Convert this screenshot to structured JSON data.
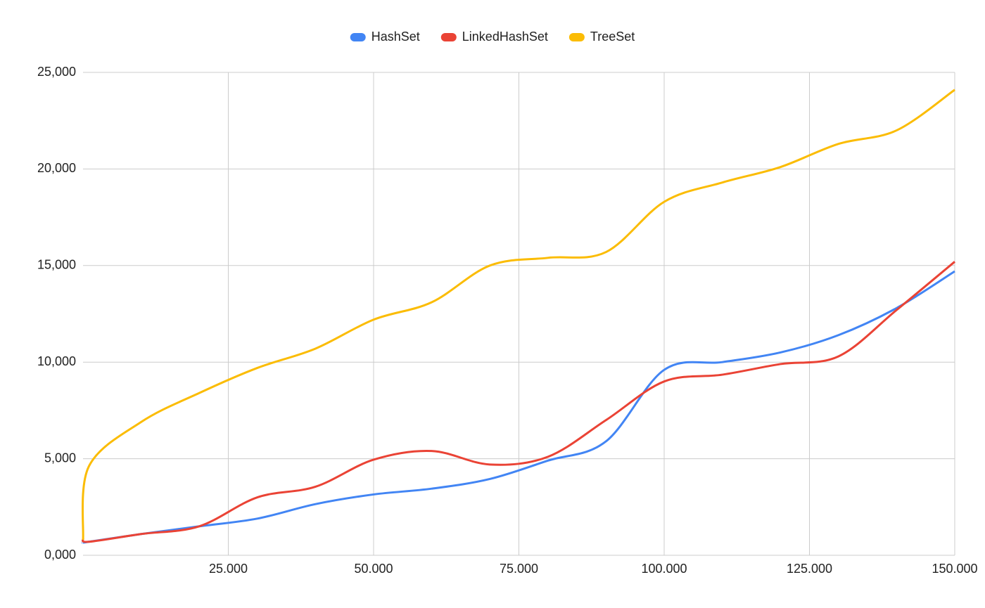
{
  "chart_data": {
    "type": "line",
    "x": [
      0,
      1000,
      10000,
      20000,
      30000,
      40000,
      50000,
      60000,
      70000,
      80000,
      90000,
      100000,
      110000,
      120000,
      130000,
      140000,
      150000
    ],
    "series": [
      {
        "name": "HashSet",
        "color": "#4285f4",
        "values": [
          650,
          700,
          1100,
          1500,
          1900,
          2650,
          3150,
          3450,
          3950,
          4900,
          5900,
          9600,
          10000,
          10500,
          11400,
          12800,
          14700
        ]
      },
      {
        "name": "LinkedHashSet",
        "color": "#ea4335",
        "values": [
          850,
          700,
          1100,
          1500,
          3000,
          3550,
          4950,
          5400,
          4700,
          5100,
          7000,
          9000,
          9350,
          9900,
          10300,
          12700,
          15200
        ]
      },
      {
        "name": "TreeSet",
        "color": "#fbbc04",
        "values": [
          800,
          4600,
          6900,
          8400,
          9700,
          10700,
          12200,
          13100,
          15000,
          15400,
          15700,
          18300,
          19300,
          20100,
          21300,
          22000,
          24100
        ]
      }
    ],
    "xlim": [
      0,
      150000
    ],
    "xticks": [
      {
        "value": 25000,
        "label": "25.000"
      },
      {
        "value": 50000,
        "label": "50.000"
      },
      {
        "value": 75000,
        "label": "75.000"
      },
      {
        "value": 100000,
        "label": "100.000"
      },
      {
        "value": 125000,
        "label": "125.000"
      },
      {
        "value": 150000,
        "label": "150.000"
      }
    ],
    "ylim": [
      0,
      25000
    ],
    "yticks": [
      {
        "value": 0,
        "label": "0,000"
      },
      {
        "value": 5000,
        "label": "5,000"
      },
      {
        "value": 10000,
        "label": "10,000"
      },
      {
        "value": 15000,
        "label": "15,000"
      },
      {
        "value": 20000,
        "label": "20,000"
      },
      {
        "value": 25000,
        "label": "25,000"
      }
    ],
    "grid": true,
    "legend": "top"
  }
}
